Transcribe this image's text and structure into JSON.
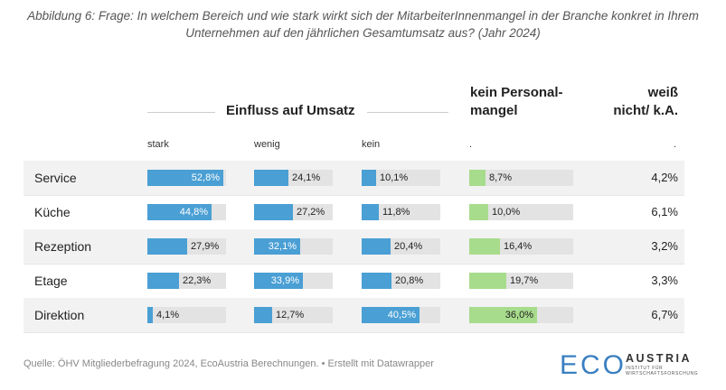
{
  "title": "Abbildung 6: Frage: In welchem Bereich und wie stark wirkt sich der MitarbeiterInnenmangel in der Branche konkret in Ihrem Unternehmen auf den jährlichen Gesamtumsatz aus? (Jahr 2024)",
  "headers": {
    "impact": "Einfluss auf Umsatz",
    "no_staff_line1": "kein Personal-",
    "no_staff_line2": "mangel",
    "dk_line1": "weiß",
    "dk_line2": "nicht/ k.A."
  },
  "subheaders": [
    "stark",
    "wenig",
    "kein",
    ".",
    "."
  ],
  "source": "Quelle: ÖHV Mitgliederbefragung 2024, EcoAustria Berechnungen. • Erstellt mit Datawrapper",
  "logo": {
    "mark": "ECO",
    "name": "AUSTRIA",
    "tag1": "INSTITUT FÜR",
    "tag2": "WIRTSCHAFTSFORSCHUNG"
  },
  "colors": {
    "blue": "#4a9fd4",
    "green": "#a7dc8c",
    "track": "#e3e3e3",
    "logo": "#3a7fc1"
  },
  "chart_data": {
    "type": "table",
    "title": "Abbildung 6: Frage: In welchem Bereich und wie stark wirkt sich der MitarbeiterInnenmangel in der Branche konkret in Ihrem Unternehmen auf den jährlichen Gesamtumsatz aus? (Jahr 2024)",
    "columns": [
      "stark",
      "wenig",
      "kein",
      "kein Personalmangel",
      "weiß nicht/ k.A."
    ],
    "unit": "%",
    "rows": [
      {
        "label": "Service",
        "values": [
          52.8,
          24.1,
          10.1,
          8.7,
          4.2
        ],
        "labels": [
          "52,8%",
          "24,1%",
          "10,1%",
          "8,7%",
          "4,2%"
        ]
      },
      {
        "label": "Küche",
        "values": [
          44.8,
          27.2,
          11.8,
          10.0,
          6.1
        ],
        "labels": [
          "44,8%",
          "27,2%",
          "11,8%",
          "10,0%",
          "6,1%"
        ]
      },
      {
        "label": "Rezeption",
        "values": [
          27.9,
          32.1,
          20.4,
          16.4,
          3.2
        ],
        "labels": [
          "27,9%",
          "32,1%",
          "20,4%",
          "16,4%",
          "3,2%"
        ]
      },
      {
        "label": "Etage",
        "values": [
          22.3,
          33.9,
          20.8,
          19.7,
          3.3
        ],
        "labels": [
          "22,3%",
          "33,9%",
          "20,8%",
          "19,7%",
          "3,3%"
        ]
      },
      {
        "label": "Direktion",
        "values": [
          4.1,
          12.7,
          40.5,
          36.0,
          6.7
        ],
        "labels": [
          "4,1%",
          "12,7%",
          "40,5%",
          "36,0%",
          "6,7%"
        ]
      }
    ]
  }
}
